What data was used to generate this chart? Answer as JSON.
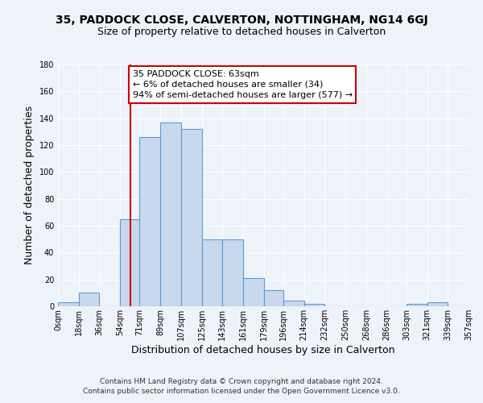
{
  "title": "35, PADDOCK CLOSE, CALVERTON, NOTTINGHAM, NG14 6GJ",
  "subtitle": "Size of property relative to detached houses in Calverton",
  "xlabel": "Distribution of detached houses by size in Calverton",
  "ylabel": "Number of detached properties",
  "bin_edges": [
    0,
    18,
    36,
    54,
    71,
    89,
    107,
    125,
    143,
    161,
    179,
    196,
    214,
    232,
    250,
    268,
    286,
    303,
    321,
    339,
    357
  ],
  "bar_heights": [
    3,
    10,
    0,
    65,
    126,
    137,
    132,
    50,
    50,
    21,
    12,
    4,
    2,
    0,
    0,
    0,
    0,
    2,
    3,
    0
  ],
  "tick_labels": [
    "0sqm",
    "18sqm",
    "36sqm",
    "54sqm",
    "71sqm",
    "89sqm",
    "107sqm",
    "125sqm",
    "143sqm",
    "161sqm",
    "179sqm",
    "196sqm",
    "214sqm",
    "232sqm",
    "250sqm",
    "268sqm",
    "286sqm",
    "303sqm",
    "321sqm",
    "339sqm",
    "357sqm"
  ],
  "bar_color": "#c8d9ed",
  "bar_edge_color": "#5b9bd5",
  "vline_x": 63,
  "vline_color": "#cc0000",
  "ylim": [
    0,
    180
  ],
  "yticks": [
    0,
    20,
    40,
    60,
    80,
    100,
    120,
    140,
    160,
    180
  ],
  "annotation_text": "35 PADDOCK CLOSE: 63sqm\n← 6% of detached houses are smaller (34)\n94% of semi-detached houses are larger (577) →",
  "annotation_box_color": "#ffffff",
  "annotation_box_edge_color": "#cc0000",
  "footer_line1": "Contains HM Land Registry data © Crown copyright and database right 2024.",
  "footer_line2": "Contains public sector information licensed under the Open Government Licence v3.0.",
  "background_color": "#eef2f9",
  "grid_color": "#ffffff",
  "title_fontsize": 10,
  "subtitle_fontsize": 9,
  "axis_label_fontsize": 9,
  "tick_fontsize": 7,
  "footer_fontsize": 6.5,
  "annotation_fontsize": 8
}
